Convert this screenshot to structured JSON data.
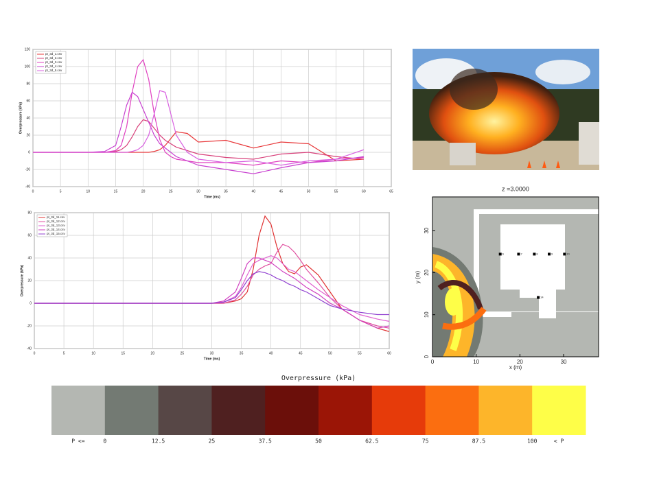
{
  "chart_data": [
    {
      "type": "line",
      "xlabel": "Time (ms)",
      "ylabel": "Overpressure (kPa)",
      "x": [
        0,
        10,
        13,
        15,
        16,
        17,
        18,
        19,
        20,
        21,
        22,
        23,
        24,
        25,
        26,
        28,
        30,
        35,
        40,
        45,
        50,
        55,
        60
      ],
      "series": [
        {
          "name": "pt_3d_1.csv",
          "color": "#e8383a",
          "values": [
            0,
            0,
            0,
            0,
            0,
            0,
            0,
            0,
            0,
            0,
            1,
            3,
            8,
            16,
            24,
            22,
            12,
            14,
            5,
            12,
            10,
            -10,
            -8
          ]
        },
        {
          "name": "pt_3d_2.csv",
          "color": "#d8407a",
          "values": [
            0,
            0,
            0,
            1,
            3,
            8,
            18,
            30,
            38,
            36,
            28,
            20,
            14,
            10,
            6,
            2,
            -2,
            -6,
            -8,
            -2,
            0,
            -5,
            -8
          ]
        },
        {
          "name": "pt_3d_3.csv",
          "color": "#e040c0",
          "values": [
            0,
            0,
            0,
            2,
            8,
            30,
            70,
            100,
            108,
            85,
            45,
            15,
            0,
            -5,
            -8,
            -10,
            -12,
            -12,
            -15,
            -10,
            -12,
            -8,
            -6
          ]
        },
        {
          "name": "pt_3d_4.csv",
          "color": "#c840d0",
          "values": [
            0,
            0,
            1,
            8,
            30,
            55,
            70,
            65,
            50,
            35,
            20,
            10,
            5,
            0,
            -5,
            -10,
            -15,
            -20,
            -25,
            -18,
            -12,
            -10,
            -5
          ]
        },
        {
          "name": "pt_3d_5.csv",
          "color": "#d860e0",
          "values": [
            0,
            0,
            0,
            0,
            0,
            0,
            1,
            3,
            8,
            20,
            45,
            72,
            70,
            45,
            20,
            0,
            -8,
            -12,
            -10,
            -15,
            -10,
            -8,
            3
          ]
        }
      ],
      "xlim": [
        0,
        65
      ],
      "ylim": [
        -40,
        120
      ],
      "xticks": [
        0,
        5,
        10,
        15,
        20,
        25,
        30,
        35,
        40,
        45,
        50,
        55,
        60,
        65
      ],
      "yticks": [
        -40,
        -20,
        0,
        20,
        40,
        60,
        80,
        100,
        120
      ],
      "grid": true,
      "legend": "upper left"
    },
    {
      "type": "line",
      "xlabel": "Time (ms)",
      "ylabel": "Overpressure (kPa)",
      "x": [
        0,
        30,
        32,
        34,
        35,
        36,
        37,
        38,
        39,
        40,
        41,
        42,
        43,
        44,
        45,
        46,
        48,
        50,
        52,
        55,
        58,
        60
      ],
      "series": [
        {
          "name": "pt_3d_11.csv",
          "color": "#e03030",
          "values": [
            0,
            0,
            0,
            2,
            4,
            10,
            30,
            60,
            77,
            70,
            50,
            35,
            28,
            26,
            32,
            34,
            25,
            10,
            -5,
            -15,
            -22,
            -25
          ]
        },
        {
          "name": "pt_3d_12.csv",
          "color": "#e050a0",
          "values": [
            0,
            0,
            0,
            3,
            8,
            15,
            25,
            30,
            33,
            35,
            45,
            52,
            50,
            45,
            38,
            30,
            18,
            5,
            -5,
            -15,
            -20,
            -22
          ]
        },
        {
          "name": "pt_3d_13.csv",
          "color": "#e060d0",
          "values": [
            0,
            0,
            1,
            6,
            14,
            25,
            35,
            38,
            40,
            42,
            40,
            35,
            30,
            28,
            24,
            20,
            12,
            5,
            -2,
            -10,
            -14,
            -16
          ]
        },
        {
          "name": "pt_3d_14.csv",
          "color": "#d040c0",
          "values": [
            0,
            0,
            2,
            10,
            22,
            35,
            40,
            40,
            38,
            36,
            32,
            28,
            25,
            22,
            18,
            14,
            8,
            0,
            -5,
            -15,
            -22,
            -20
          ]
        },
        {
          "name": "pt_3d_15.csv",
          "color": "#9040d0",
          "values": [
            0,
            0,
            1,
            5,
            12,
            20,
            26,
            28,
            27,
            25,
            22,
            20,
            17,
            15,
            12,
            10,
            4,
            -2,
            -5,
            -8,
            -10,
            -10
          ]
        }
      ],
      "xlim": [
        0,
        60
      ],
      "ylim": [
        -40,
        80
      ],
      "xticks": [
        0,
        5,
        10,
        15,
        20,
        25,
        30,
        35,
        40,
        45,
        50,
        55,
        60
      ],
      "yticks": [
        -40,
        -20,
        0,
        20,
        40,
        60,
        80
      ],
      "grid": true,
      "legend": "upper left"
    }
  ],
  "map": {
    "title": "z =3.0000",
    "xlabel": "x (m)",
    "ylabel": "y (m)",
    "xlim": [
      0,
      38
    ],
    "ylim": [
      0,
      38
    ],
    "xticks": [
      0,
      10,
      20,
      30
    ],
    "yticks": [
      0,
      10,
      20,
      30
    ],
    "probes": [
      {
        "label": "6",
        "x": 15.5,
        "y": 24.4
      },
      {
        "label": "7",
        "x": 19.7,
        "y": 24.4
      },
      {
        "label": "8",
        "x": 23.3,
        "y": 24.4
      },
      {
        "label": "9",
        "x": 26.7,
        "y": 24.4
      },
      {
        "label": "10",
        "x": 30.2,
        "y": 24.4
      },
      {
        "label": "14",
        "x": 24.2,
        "y": 14.1
      }
    ]
  },
  "colorbar": {
    "title": "Overpressure (kPa)",
    "below_label": "P <=",
    "above_label": "< P",
    "colors": [
      "#b4b7b2",
      "#737a73",
      "#574746",
      "#4f2020",
      "#6b0f0a",
      "#9b1506",
      "#e63b0a",
      "#fb6e10",
      "#fdb52a",
      "#fefe48"
    ],
    "ticks": [
      0,
      12.5,
      25,
      37.5,
      50,
      62.5,
      75,
      87.5,
      100
    ]
  }
}
